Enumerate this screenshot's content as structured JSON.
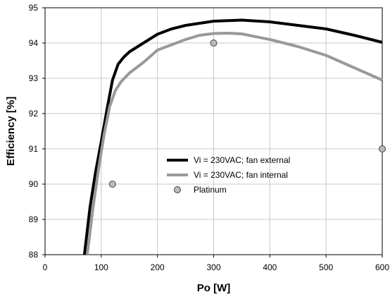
{
  "chart_data": {
    "type": "line",
    "title": "",
    "xlabel": "Po [W]",
    "ylabel": "Efficiency [%]",
    "xlim": [
      0,
      600
    ],
    "ylim": [
      88,
      95
    ],
    "xticks": [
      0,
      100,
      200,
      300,
      400,
      500,
      600
    ],
    "yticks": [
      88,
      89,
      90,
      91,
      92,
      93,
      94,
      95
    ],
    "grid": true,
    "legend_position": "center",
    "series": [
      {
        "name": "Vi = 230VAC; fan external",
        "type": "line",
        "color": "#000000",
        "x": [
          70,
          80,
          90,
          100,
          110,
          120,
          130,
          140,
          150,
          160,
          175,
          200,
          225,
          250,
          300,
          350,
          400,
          450,
          500,
          550,
          600
        ],
        "y": [
          88.0,
          89.35,
          90.35,
          91.2,
          92.1,
          92.95,
          93.4,
          93.6,
          93.75,
          93.85,
          94.0,
          94.25,
          94.4,
          94.5,
          94.62,
          94.65,
          94.6,
          94.5,
          94.4,
          94.22,
          94.02
        ]
      },
      {
        "name": "Vi = 230VAC; fan internal",
        "type": "line",
        "color": "#999999",
        "x": [
          75,
          85,
          95,
          105,
          115,
          125,
          135,
          150,
          175,
          200,
          225,
          250,
          275,
          300,
          325,
          350,
          400,
          450,
          500,
          550,
          600
        ],
        "y": [
          88.0,
          89.3,
          90.4,
          91.4,
          92.2,
          92.65,
          92.9,
          93.15,
          93.45,
          93.8,
          93.95,
          94.1,
          94.22,
          94.27,
          94.28,
          94.26,
          94.1,
          93.9,
          93.65,
          93.3,
          92.95
        ]
      },
      {
        "name": "Platinum",
        "type": "scatter",
        "color": "#bbbbbb",
        "x": [
          120,
          300,
          600
        ],
        "y": [
          90.0,
          94.0,
          91.0
        ]
      }
    ]
  }
}
